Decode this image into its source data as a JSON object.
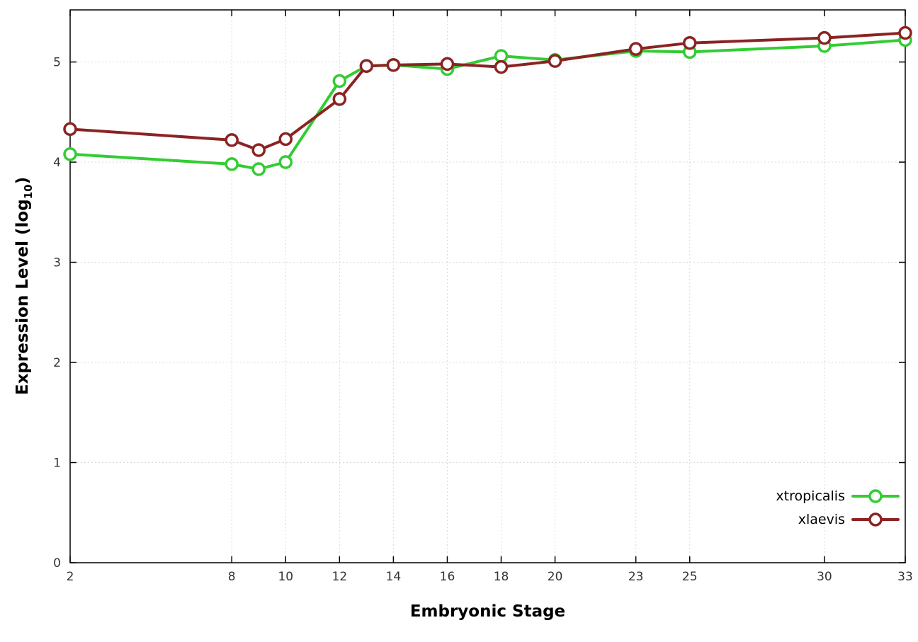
{
  "labels": {
    "ylabel_prefix": "Expression Level (log",
    "ylabel_sub": "10",
    "ylabel_suffix": ")"
  },
  "style": {
    "background": "#ffffff",
    "axis_color": "#000000",
    "grid_color": "#d9d9d9",
    "tick_label_color": "#333333",
    "legend_text_color": "#000000"
  },
  "chart_data": {
    "type": "line",
    "title": "",
    "xlabel": "Embryonic Stage",
    "ylabel": "Expression Level (log10)",
    "grid": true,
    "legend_position": "bottom-right",
    "xlim": [
      2,
      33
    ],
    "ylim": [
      0,
      5.52
    ],
    "xticks": [
      2,
      8,
      10,
      12,
      14,
      16,
      18,
      20,
      23,
      25,
      30,
      33
    ],
    "yticks": [
      0,
      1,
      2,
      3,
      4,
      5
    ],
    "x": [
      2,
      8,
      9,
      10,
      12,
      13,
      14,
      16,
      18,
      20,
      23,
      25,
      30,
      33
    ],
    "series": [
      {
        "name": "xtropicalis",
        "color": "#33cc33",
        "values": [
          4.08,
          3.98,
          3.93,
          4.0,
          4.81,
          4.96,
          4.97,
          4.93,
          5.06,
          5.02,
          5.11,
          5.1,
          5.16,
          5.22
        ]
      },
      {
        "name": "xlaevis",
        "color": "#8b2323",
        "values": [
          4.33,
          4.22,
          4.12,
          4.23,
          4.63,
          4.96,
          4.97,
          4.98,
          4.95,
          5.01,
          5.13,
          5.19,
          5.24,
          5.29
        ]
      }
    ]
  }
}
